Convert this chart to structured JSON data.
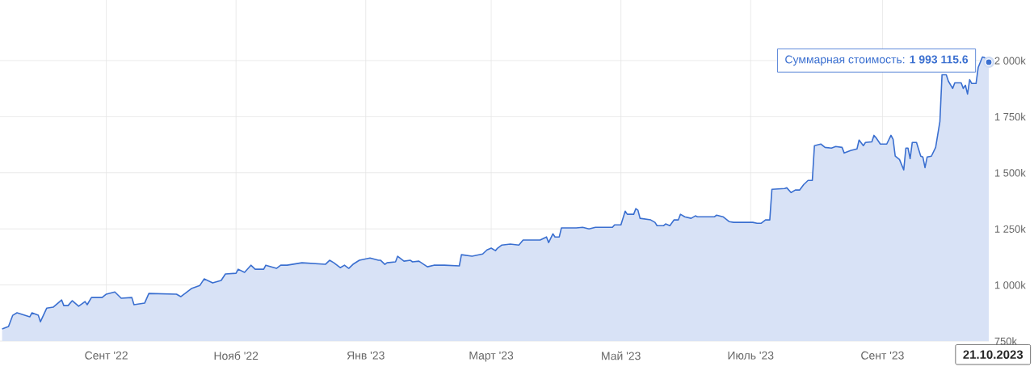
{
  "chart_data": {
    "type": "area",
    "color": "#3a6fd0",
    "grid": true,
    "x": [
      "2022-07-14",
      "2022-07-17",
      "2022-07-19",
      "2022-07-21",
      "2022-07-27",
      "2022-07-28",
      "2022-07-31",
      "2022-08-01",
      "2022-08-04",
      "2022-08-07",
      "2022-08-11",
      "2022-08-12",
      "2022-08-14",
      "2022-08-16",
      "2022-08-19",
      "2022-08-22",
      "2022-08-23",
      "2022-08-25",
      "2022-08-30",
      "2022-09-01",
      "2022-09-05",
      "2022-09-08",
      "2022-09-13",
      "2022-09-14",
      "2022-09-19",
      "2022-09-21",
      "2022-10-04",
      "2022-10-06",
      "2022-10-08",
      "2022-10-11",
      "2022-10-15",
      "2022-10-17",
      "2022-10-21",
      "2022-10-25",
      "2022-10-27",
      "2022-11-01",
      "2022-11-02",
      "2022-11-05",
      "2022-11-08",
      "2022-11-10",
      "2022-11-14",
      "2022-11-15",
      "2022-11-20",
      "2022-11-22",
      "2022-11-25",
      "2022-12-02",
      "2022-12-13",
      "2022-12-15",
      "2022-12-17",
      "2022-12-20",
      "2022-12-22",
      "2022-12-24",
      "2022-12-26",
      "2022-12-29",
      "2023-01-03",
      "2023-01-07",
      "2023-01-08",
      "2023-01-10",
      "2023-01-11",
      "2023-01-15",
      "2023-01-16",
      "2023-01-19",
      "2023-01-22",
      "2023-01-23",
      "2023-01-26",
      "2023-01-30",
      "2023-02-02",
      "2023-02-07",
      "2023-02-14",
      "2023-02-15",
      "2023-02-20",
      "2023-02-25",
      "2023-02-27",
      "2023-03-01",
      "2023-03-03",
      "2023-03-04",
      "2023-03-06",
      "2023-03-10",
      "2023-03-14",
      "2023-03-16",
      "2023-03-24",
      "2023-03-27",
      "2023-03-28",
      "2023-03-30",
      "2023-03-31",
      "2023-04-02",
      "2023-04-03",
      "2023-04-10",
      "2023-04-13",
      "2023-04-16",
      "2023-04-19",
      "2023-04-27",
      "2023-04-28",
      "2023-05-01",
      "2023-05-03",
      "2023-05-04",
      "2023-05-07",
      "2023-05-08",
      "2023-05-09",
      "2023-05-10",
      "2023-05-15",
      "2023-05-17",
      "2023-05-18",
      "2023-05-21",
      "2023-05-22",
      "2023-05-24",
      "2023-05-26",
      "2023-05-28",
      "2023-05-29",
      "2023-05-31",
      "2023-06-03",
      "2023-06-05",
      "2023-06-06",
      "2023-06-14",
      "2023-06-15",
      "2023-06-18",
      "2023-06-21",
      "2023-06-23",
      "2023-07-02",
      "2023-07-04",
      "2023-07-06",
      "2023-07-08",
      "2023-07-10",
      "2023-07-11",
      "2023-07-17",
      "2023-07-18",
      "2023-07-20",
      "2023-07-22",
      "2023-07-24",
      "2023-07-26",
      "2023-07-28",
      "2023-07-30",
      "2023-07-31",
      "2023-08-03",
      "2023-08-05",
      "2023-08-08",
      "2023-08-10",
      "2023-08-13",
      "2023-08-14",
      "2023-08-17",
      "2023-08-20",
      "2023-08-21",
      "2023-08-23",
      "2023-08-24",
      "2023-08-27",
      "2023-08-28",
      "2023-08-29",
      "2023-08-31",
      "2023-09-03",
      "2023-09-05",
      "2023-09-06",
      "2023-09-07",
      "2023-09-09",
      "2023-09-11",
      "2023-09-12",
      "2023-09-13",
      "2023-09-14",
      "2023-09-15",
      "2023-09-17",
      "2023-09-19",
      "2023-09-20",
      "2023-09-21",
      "2023-09-22",
      "2023-09-24",
      "2023-09-26",
      "2023-09-28",
      "2023-09-29",
      "2023-10-01",
      "2023-10-02",
      "2023-10-04",
      "2023-10-05",
      "2023-10-08",
      "2023-10-09",
      "2023-10-10",
      "2023-10-11",
      "2023-10-12",
      "2023-10-13",
      "2023-10-15",
      "2023-10-16",
      "2023-10-18",
      "2023-10-19",
      "2023-10-21"
    ],
    "values": [
      804,
      815,
      865,
      876,
      858,
      876,
      865,
      836,
      897,
      901,
      933,
      908,
      908,
      930,
      905,
      926,
      912,
      944,
      944,
      959,
      969,
      941,
      944,
      912,
      919,
      962,
      959,
      948,
      962,
      984,
      998,
      1027,
      1009,
      1020,
      1049,
      1052,
      1070,
      1056,
      1088,
      1070,
      1070,
      1088,
      1074,
      1088,
      1088,
      1099,
      1092,
      1110,
      1099,
      1077,
      1088,
      1074,
      1092,
      1110,
      1120,
      1110,
      1110,
      1092,
      1099,
      1103,
      1128,
      1106,
      1110,
      1103,
      1106,
      1081,
      1088,
      1088,
      1085,
      1135,
      1128,
      1138,
      1156,
      1164,
      1153,
      1164,
      1178,
      1182,
      1178,
      1200,
      1200,
      1214,
      1189,
      1228,
      1214,
      1214,
      1254,
      1254,
      1257,
      1250,
      1257,
      1257,
      1268,
      1268,
      1329,
      1315,
      1315,
      1340,
      1333,
      1297,
      1290,
      1279,
      1264,
      1264,
      1272,
      1264,
      1290,
      1290,
      1315,
      1304,
      1297,
      1308,
      1304,
      1304,
      1311,
      1304,
      1282,
      1279,
      1279,
      1275,
      1275,
      1290,
      1290,
      1426,
      1430,
      1433,
      1412,
      1423,
      1423,
      1448,
      1466,
      1466,
      1621,
      1628,
      1613,
      1610,
      1617,
      1613,
      1588,
      1599,
      1606,
      1646,
      1621,
      1635,
      1638,
      1667,
      1656,
      1628,
      1628,
      1667,
      1649,
      1574,
      1559,
      1513,
      1610,
      1610,
      1563,
      1635,
      1635,
      1574,
      1570,
      1523,
      1570,
      1574,
      1613,
      1728,
      1937,
      1937,
      1908,
      1876,
      1901,
      1901,
      1876,
      1890,
      1851,
      1915,
      1898,
      1898,
      1969,
      2016,
      2013,
      1993
    ],
    "xlim": [
      "2022-07-13",
      "2023-10-21"
    ],
    "xticks": [
      {
        "value": "2022-09-01",
        "label": "Сент '22"
      },
      {
        "value": "2022-11-01",
        "label": "Нояб '22"
      },
      {
        "value": "2023-01-01",
        "label": "Янв '23"
      },
      {
        "value": "2023-03-01",
        "label": "Март '23"
      },
      {
        "value": "2023-05-01",
        "label": "Май '23"
      },
      {
        "value": "2023-07-01",
        "label": "Июль '23"
      },
      {
        "value": "2023-09-01",
        "label": "Сент '23"
      }
    ],
    "ylim": [
      750,
      2270
    ],
    "yticks": [
      {
        "value": 750,
        "label": "750k"
      },
      {
        "value": 1000,
        "label": "1 000k"
      },
      {
        "value": 1250,
        "label": "1 250k"
      },
      {
        "value": 1500,
        "label": "1 500k"
      },
      {
        "value": 1750,
        "label": "1 750k"
      },
      {
        "value": 2000,
        "label": "2 000k"
      }
    ],
    "annotations": [
      {
        "text": "Суммарная стоимость: **1 993 115.6**",
        "x": "2023-10-21",
        "y": 1993
      },
      "21.10.2023"
    ]
  }
}
